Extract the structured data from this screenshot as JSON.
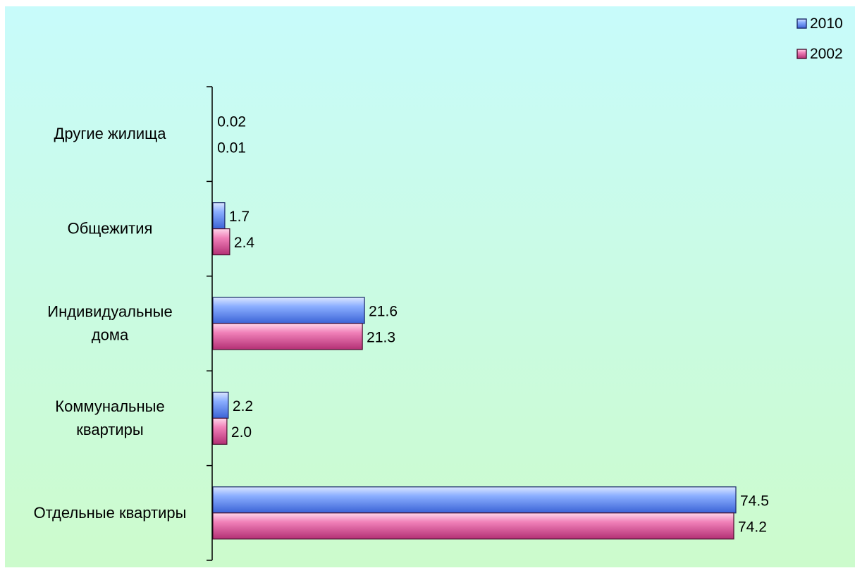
{
  "colors": {
    "background_top": "#c8fbfb",
    "background_bottom": "#ccfbcc",
    "series_2010": "#8aaeff",
    "series_2002": "#f080b8",
    "axis": "#000000",
    "text": "#000000"
  },
  "chart_data": {
    "type": "bar",
    "orientation": "horizontal",
    "title": "",
    "xlabel": "",
    "ylabel": "",
    "categories": [
      [
        "Другие жилища"
      ],
      [
        "Общежития"
      ],
      [
        "Индивидуальные",
        "дома"
      ],
      [
        "Коммунальные",
        "квартиры"
      ],
      [
        "Отдельные квартиры"
      ]
    ],
    "series": [
      {
        "name": "2010",
        "values": [
          0.02,
          1.7,
          21.6,
          2.2,
          74.5
        ],
        "labels": [
          "0.02",
          "1.7",
          "21.6",
          "2.2",
          "74.5"
        ]
      },
      {
        "name": "2002",
        "values": [
          0.01,
          2.4,
          21.3,
          2.0,
          74.2
        ],
        "labels": [
          "0.01",
          "2.4",
          "21.3",
          "2.0",
          "74.2"
        ]
      }
    ],
    "xlim": [
      0,
      74.5
    ],
    "grid": false,
    "legend": "top-right"
  }
}
